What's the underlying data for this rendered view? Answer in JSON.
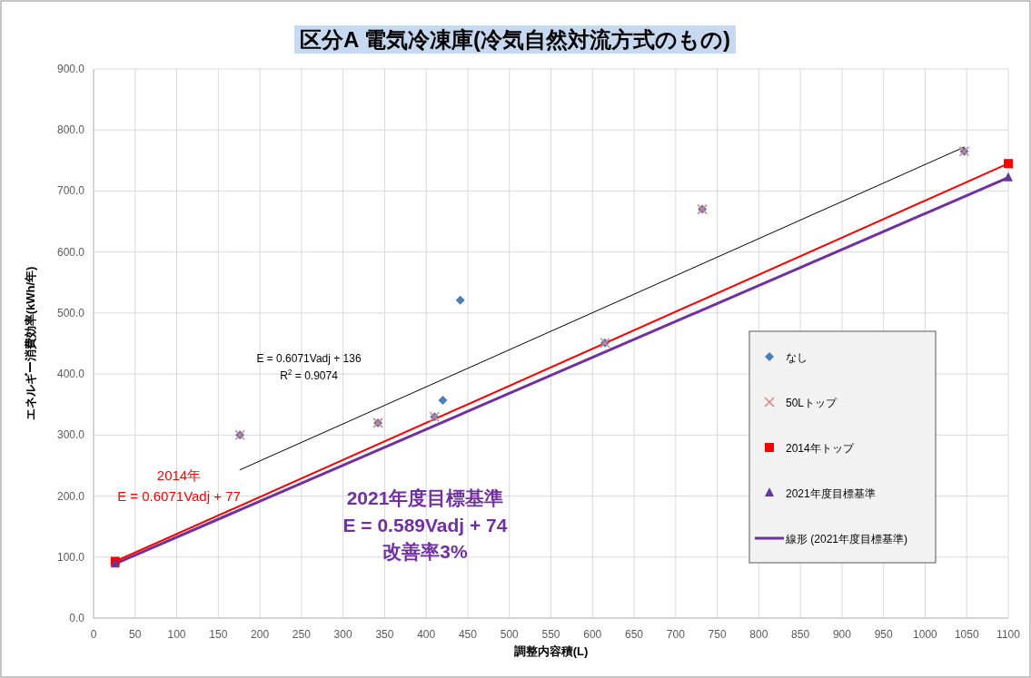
{
  "chart_data": {
    "type": "scatter",
    "title": "区分A  電気冷凍庫(冷気自然対流方式のもの)",
    "xlabel": "調整内容積(L)",
    "ylabel": "エネルギー消費効率(kWh/年)",
    "xlim": [
      0,
      1100
    ],
    "xticks": [
      0,
      50,
      100,
      150,
      200,
      250,
      300,
      350,
      400,
      450,
      500,
      550,
      600,
      650,
      700,
      750,
      800,
      850,
      900,
      950,
      1000,
      1050,
      1100
    ],
    "ylim": [
      0,
      900
    ],
    "yticks": [
      {
        "value": 0,
        "label": "0.0"
      },
      {
        "value": 100,
        "label": "100.0"
      },
      {
        "value": 200,
        "label": "200.0"
      },
      {
        "value": 300,
        "label": "300.0"
      },
      {
        "value": 400,
        "label": "400.0"
      },
      {
        "value": 500,
        "label": "500.0"
      },
      {
        "value": 600,
        "label": "600.0"
      },
      {
        "value": 700,
        "label": "700.0"
      },
      {
        "value": 800,
        "label": "800.0"
      },
      {
        "value": 900,
        "label": "900.0"
      }
    ],
    "grid": true,
    "legend": "bottom right",
    "series": [
      {
        "name": "なし",
        "marker": "diamond",
        "color": "#4a7ebb",
        "x": [
          176,
          342,
          410,
          420,
          441,
          615,
          732,
          1047
        ],
        "values": [
          300,
          320,
          330,
          357,
          521,
          451,
          670,
          765
        ]
      },
      {
        "name": "50Lトップ",
        "marker": "cross",
        "color": "#e08080",
        "x": [
          176,
          342,
          410,
          615,
          732,
          1047
        ],
        "values": [
          300,
          320,
          330,
          451,
          670,
          765
        ]
      },
      {
        "name": "2014年トップ",
        "marker": "square",
        "color": "#ff0000",
        "x": [
          26,
          1100
        ],
        "values": [
          93,
          745
        ]
      },
      {
        "name": "2021年度目標基準",
        "marker": "triangle",
        "color": "#60399a",
        "x": [
          26,
          1100
        ],
        "values": [
          89,
          722
        ]
      },
      {
        "name": "線形 (2021年度目標基準)",
        "type": "line",
        "marker": "none",
        "color": "#7030a0",
        "x": [
          26,
          1100
        ],
        "values": [
          89,
          722
        ]
      },
      {
        "type": "line",
        "marker": "none",
        "color": "#ff0000",
        "x": [
          26,
          1100
        ],
        "values": [
          93,
          745
        ]
      },
      {
        "type": "line",
        "marker": "none",
        "color": "#000000",
        "x": [
          176,
          1047
        ],
        "values": [
          243,
          772
        ]
      }
    ],
    "annotations": [
      "E = 0.6071Vadj + 136",
      "R$^{2}$ = 0.9074",
      "2014年",
      "E = 0.6071Vadj + 77",
      "2021年度目標基準",
      "E = 0.589Vadj + 74",
      "改善率3%"
    ]
  }
}
